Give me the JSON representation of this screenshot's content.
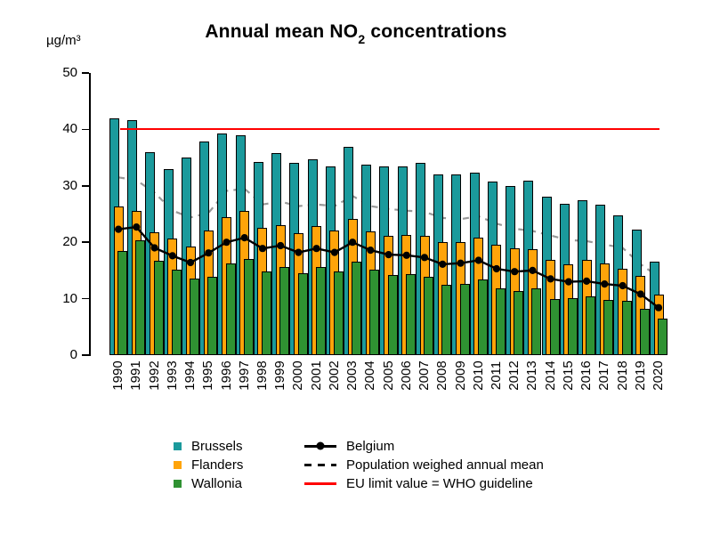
{
  "title": {
    "part1": "Annual mean NO",
    "subscript": "2",
    "part2": " concentrations"
  },
  "y_axis": {
    "unit": "µg/m³",
    "ticks": [
      0,
      10,
      20,
      30,
      40,
      50
    ],
    "max": 50
  },
  "chart_data": {
    "type": "bar",
    "title": "Annual mean NO2 concentrations",
    "ylabel": "µg/m³",
    "ylim": [
      0,
      50
    ],
    "grid": false,
    "legend_position": "bottom",
    "categories": [
      1990,
      1991,
      1992,
      1993,
      1994,
      1995,
      1996,
      1997,
      1998,
      1999,
      2000,
      2001,
      2002,
      2003,
      2004,
      2005,
      2006,
      2007,
      2008,
      2009,
      2010,
      2011,
      2012,
      2013,
      2014,
      2015,
      2016,
      2017,
      2018,
      2019,
      2020
    ],
    "series": [
      {
        "name": "Brussels",
        "type": "bar",
        "color": "#1B9A9C",
        "values": [
          42,
          41.6,
          36,
          33,
          35,
          37.9,
          39.3,
          38.9,
          34.2,
          35.8,
          34.1,
          34.7,
          33.5,
          36.9,
          33.7,
          33.4,
          33.5,
          34.1,
          32,
          32,
          32.4,
          30.8,
          29.9,
          31,
          28.1,
          26.8,
          27.5,
          26.7,
          24.8,
          22.3,
          16.6
        ]
      },
      {
        "name": "Flanders",
        "type": "bar",
        "color": "#FFA40A",
        "values": [
          26.3,
          25.5,
          21.7,
          20.7,
          19.3,
          22.1,
          24.4,
          25.5,
          22.6,
          23,
          21.6,
          22.9,
          22.1,
          24.2,
          22,
          21.2,
          21.3,
          21.2,
          20,
          20,
          20.9,
          19.6,
          18.9,
          18.7,
          16.9,
          16.1,
          16.9,
          16.3,
          15.3,
          14.1,
          10.7
        ]
      },
      {
        "name": "Wallonia",
        "type": "bar",
        "color": "#2F9232",
        "values": [
          18.5,
          20.4,
          16.8,
          15.2,
          13.5,
          13.9,
          16.3,
          17,
          14.8,
          15.6,
          14.5,
          15.6,
          14.8,
          16.6,
          15.2,
          14.2,
          14.3,
          13.9,
          12.4,
          12.6,
          13.4,
          11.9,
          11.3,
          11.8,
          10,
          10.1,
          10.4,
          9.8,
          9.7,
          8.2,
          6.4
        ]
      },
      {
        "name": "Belgium",
        "type": "line",
        "color": "#000000",
        "marker": "circle",
        "values": [
          22.3,
          22.7,
          19,
          17.6,
          16.4,
          18.1,
          20,
          20.8,
          18.9,
          19.4,
          18.2,
          18.9,
          18.2,
          20,
          18.6,
          17.8,
          17.7,
          17.3,
          16.1,
          16.3,
          16.8,
          15.3,
          14.8,
          15,
          13.5,
          13,
          13.1,
          12.6,
          12.3,
          10.8,
          8.4
        ]
      },
      {
        "name": "Population weighed annual mean",
        "type": "dashed-line",
        "color": "#999999",
        "values": [
          31.5,
          31,
          28.8,
          25.6,
          24.4,
          25.2,
          29.1,
          29.5,
          26.7,
          27.2,
          26.4,
          26.7,
          26.4,
          28.2,
          26.4,
          25.9,
          25.6,
          25.4,
          24.3,
          24.1,
          24.6,
          23.3,
          22.4,
          22,
          21.2,
          20.4,
          20.2,
          19.6,
          19,
          16.1,
          13.9
        ]
      },
      {
        "name": "EU limit value = WHO guideline",
        "type": "hline",
        "color": "#FF0000",
        "value": 40
      }
    ]
  }
}
